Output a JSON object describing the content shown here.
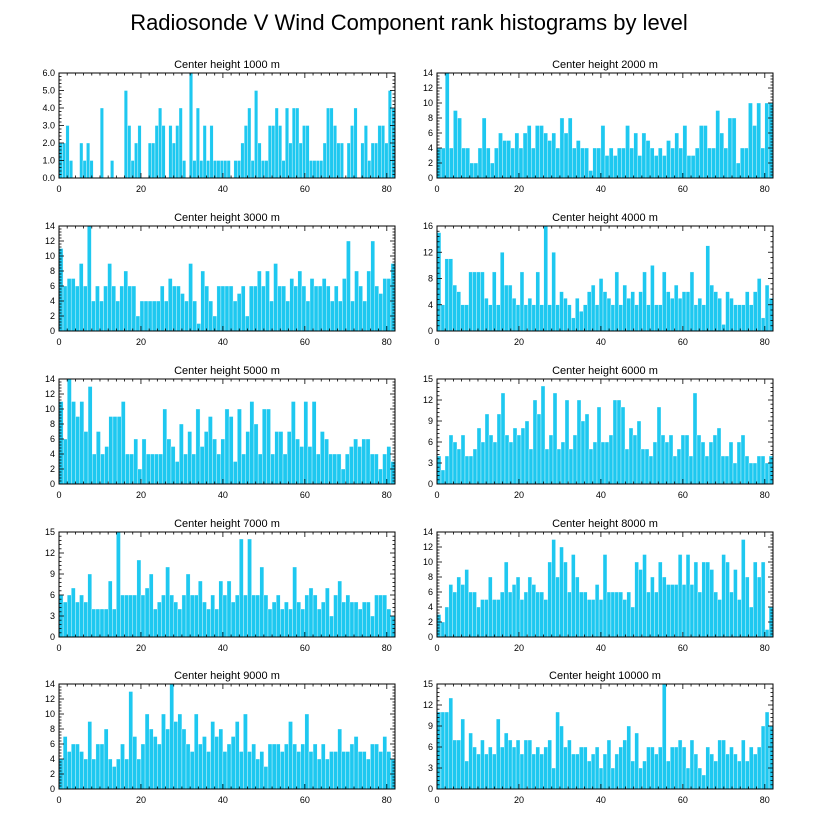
{
  "figure_title": "Radiosonde V Wind Component rank histograms by level",
  "bar_color": "#1EC8F0",
  "chart_data": [
    {
      "type": "bar",
      "title": "Center height 1000 m",
      "xlim": [
        0,
        82
      ],
      "ylim": [
        0,
        6
      ],
      "xticks": [
        "0",
        "20",
        "40",
        "60",
        "80"
      ],
      "yticks": [
        "0.0",
        "1.0",
        "2.0",
        "3.0",
        "4.0",
        "5.0",
        "6.0"
      ],
      "values": [
        2,
        2,
        3,
        1,
        0,
        0,
        2,
        1,
        2,
        1,
        0,
        0,
        4,
        0,
        0,
        1,
        0,
        0,
        0,
        5,
        3,
        1,
        2,
        3,
        0,
        0,
        2,
        2,
        3,
        4,
        3,
        0,
        3,
        2,
        3,
        4,
        1,
        0,
        6,
        1,
        4,
        1,
        3,
        1,
        3,
        1,
        1,
        1,
        1,
        1,
        0,
        1,
        1,
        2,
        3,
        4,
        1,
        5,
        2,
        1,
        1,
        3,
        3,
        4,
        3,
        1,
        4,
        2,
        4,
        4,
        2,
        3,
        3,
        1,
        1,
        1,
        1,
        2,
        4,
        4,
        3,
        2,
        2,
        0,
        2,
        3,
        4,
        0,
        2,
        3,
        1,
        2,
        2,
        3,
        3,
        2,
        5,
        4
      ]
    },
    {
      "type": "bar",
      "title": "Center height 2000 m",
      "xlim": [
        0,
        82
      ],
      "ylim": [
        0,
        14
      ],
      "xticks": [
        "0",
        "20",
        "40",
        "60",
        "80"
      ],
      "yticks": [
        "0",
        "2",
        "4",
        "6",
        "8",
        "10",
        "12",
        "14"
      ],
      "values": [
        4,
        4,
        14,
        4,
        9,
        8,
        4,
        4,
        2,
        2,
        4,
        8,
        4,
        2,
        4,
        6,
        5,
        5,
        4,
        6,
        4,
        6,
        7,
        4,
        7,
        7,
        6,
        5,
        6,
        4,
        8,
        6,
        8,
        4,
        5,
        4,
        4,
        1,
        4,
        4,
        7,
        3,
        4,
        3,
        4,
        4,
        7,
        4,
        6,
        3,
        6,
        5,
        4,
        3,
        4,
        3,
        5,
        4,
        6,
        4,
        7,
        3,
        3,
        4,
        7,
        7,
        4,
        4,
        9,
        6,
        4,
        8,
        8,
        2,
        4,
        4,
        10,
        7,
        10,
        4,
        10,
        10
      ]
    },
    {
      "type": "bar",
      "title": "Center height 3000 m",
      "xlim": [
        0,
        82
      ],
      "ylim": [
        0,
        14
      ],
      "xticks": [
        "0",
        "20",
        "40",
        "60",
        "80"
      ],
      "yticks": [
        "0",
        "2",
        "4",
        "6",
        "8",
        "10",
        "12",
        "14"
      ],
      "values": [
        11,
        6,
        7,
        7,
        6,
        9,
        6,
        14,
        4,
        6,
        4,
        6,
        9,
        6,
        4,
        6,
        8,
        6,
        6,
        2,
        4,
        4,
        4,
        4,
        4,
        6,
        4,
        7,
        6,
        6,
        5,
        4,
        9,
        4,
        1,
        8,
        6,
        4,
        2,
        6,
        6,
        6,
        6,
        4,
        5,
        6,
        2,
        6,
        6,
        8,
        6,
        8,
        4,
        9,
        6,
        6,
        4,
        7,
        6,
        8,
        6,
        4,
        7,
        6,
        6,
        7,
        6,
        4,
        6,
        4,
        7,
        12,
        4,
        8,
        6,
        4,
        8,
        12,
        6,
        5,
        7,
        7,
        9
      ]
    },
    {
      "type": "bar",
      "title": "Center height 4000 m",
      "xlim": [
        0,
        82
      ],
      "ylim": [
        0,
        16
      ],
      "xticks": [
        "0",
        "20",
        "40",
        "60",
        "80"
      ],
      "yticks": [
        "0",
        "4",
        "8",
        "12",
        "16"
      ],
      "values": [
        15,
        4,
        11,
        11,
        7,
        6,
        4,
        4,
        9,
        9,
        9,
        9,
        5,
        4,
        9,
        4,
        12,
        7,
        7,
        5,
        4,
        9,
        4,
        5,
        4,
        9,
        4,
        16,
        4,
        12,
        4,
        6,
        5,
        4,
        2,
        5,
        3,
        4,
        6,
        7,
        4,
        8,
        6,
        5,
        4,
        9,
        4,
        7,
        5,
        6,
        4,
        6,
        9,
        4,
        10,
        4,
        4,
        9,
        6,
        5,
        7,
        5,
        6,
        6,
        9,
        4,
        5,
        4,
        13,
        7,
        6,
        5,
        1,
        6,
        5,
        4,
        4,
        4,
        6,
        4,
        6,
        8,
        2,
        7,
        5
      ]
    },
    {
      "type": "bar",
      "title": "Center height 5000 m",
      "xlim": [
        0,
        82
      ],
      "ylim": [
        0,
        14
      ],
      "xticks": [
        "0",
        "20",
        "40",
        "60",
        "80"
      ],
      "yticks": [
        "0",
        "2",
        "4",
        "6",
        "8",
        "10",
        "12",
        "14"
      ],
      "values": [
        11,
        6,
        14,
        11,
        9,
        11,
        7,
        13,
        4,
        7,
        4,
        5,
        9,
        9,
        9,
        11,
        4,
        4,
        6,
        2,
        6,
        4,
        4,
        4,
        4,
        10,
        6,
        5,
        3,
        8,
        4,
        7,
        4,
        10,
        5,
        7,
        9,
        6,
        4,
        6,
        10,
        9,
        3,
        10,
        4,
        7,
        11,
        8,
        4,
        10,
        10,
        4,
        7,
        7,
        4,
        7,
        11,
        6,
        5,
        11,
        5,
        11,
        4,
        7,
        6,
        4,
        4,
        4,
        2,
        4,
        5,
        6,
        5,
        6,
        6,
        4,
        4,
        2,
        4,
        5,
        3
      ]
    },
    {
      "type": "bar",
      "title": "Center height 6000 m",
      "xlim": [
        0,
        82
      ],
      "ylim": [
        0,
        15
      ],
      "xticks": [
        "0",
        "20",
        "40",
        "60",
        "80"
      ],
      "yticks": [
        "0",
        "3",
        "6",
        "9",
        "12",
        "15"
      ],
      "values": [
        4,
        2,
        4,
        7,
        6,
        5,
        7,
        4,
        4,
        5,
        8,
        6,
        10,
        7,
        6,
        10,
        13,
        7,
        6,
        8,
        7,
        8,
        9,
        5,
        12,
        10,
        14,
        5,
        7,
        13,
        5,
        6,
        12,
        5,
        7,
        12,
        9,
        10,
        5,
        6,
        11,
        6,
        6,
        7,
        12,
        12,
        11,
        5,
        8,
        7,
        9,
        5,
        5,
        4,
        6,
        11,
        7,
        6,
        7,
        4,
        5,
        7,
        7,
        4,
        13,
        7,
        6,
        4,
        6,
        7,
        8,
        4,
        4,
        6,
        3,
        6,
        7,
        4,
        3,
        3,
        4,
        4,
        3,
        4
      ]
    },
    {
      "type": "bar",
      "title": "Center height 7000 m",
      "xlim": [
        0,
        82
      ],
      "ylim": [
        0,
        15
      ],
      "xticks": [
        "0",
        "20",
        "40",
        "60",
        "80"
      ],
      "yticks": [
        "0",
        "3",
        "6",
        "9",
        "12",
        "15"
      ],
      "values": [
        6,
        5,
        6,
        7,
        5,
        6,
        5,
        9,
        4,
        4,
        4,
        4,
        8,
        4,
        15,
        6,
        6,
        6,
        6,
        11,
        6,
        7,
        9,
        4,
        5,
        6,
        10,
        6,
        5,
        4,
        6,
        9,
        6,
        6,
        8,
        5,
        4,
        6,
        4,
        8,
        6,
        8,
        5,
        6,
        14,
        6,
        14,
        6,
        6,
        10,
        6,
        4,
        5,
        6,
        4,
        5,
        4,
        10,
        5,
        4,
        6,
        7,
        6,
        4,
        5,
        7,
        3,
        6,
        8,
        5,
        6,
        5,
        5,
        4,
        5,
        5,
        3,
        6,
        6,
        6,
        4,
        3
      ]
    },
    {
      "type": "bar",
      "title": "Center height 8000 m",
      "xlim": [
        0,
        82
      ],
      "ylim": [
        0,
        14
      ],
      "xticks": [
        "0",
        "20",
        "40",
        "60",
        "80"
      ],
      "yticks": [
        "0",
        "2",
        "4",
        "6",
        "8",
        "10",
        "12",
        "14"
      ],
      "values": [
        3,
        2,
        4,
        7,
        6,
        8,
        7,
        9,
        6,
        6,
        4,
        5,
        5,
        8,
        5,
        5,
        6,
        10,
        6,
        7,
        8,
        5,
        6,
        8,
        7,
        6,
        6,
        5,
        10,
        13,
        8,
        12,
        10,
        6,
        11,
        8,
        6,
        6,
        5,
        5,
        7,
        5,
        11,
        6,
        6,
        6,
        6,
        5,
        6,
        4,
        10,
        9,
        11,
        6,
        8,
        6,
        10,
        8,
        7,
        7,
        7,
        11,
        7,
        11,
        7,
        10,
        6,
        10,
        10,
        9,
        6,
        5,
        11,
        10,
        6,
        9,
        5,
        13,
        8,
        4,
        10,
        8,
        10,
        1,
        4
      ]
    },
    {
      "type": "bar",
      "title": "Center height 9000 m",
      "xlim": [
        0,
        82
      ],
      "ylim": [
        0,
        14
      ],
      "xticks": [
        "0",
        "20",
        "40",
        "60",
        "80"
      ],
      "yticks": [
        "0",
        "2",
        "4",
        "6",
        "8",
        "10",
        "12",
        "14"
      ],
      "values": [
        4,
        7,
        5,
        6,
        6,
        5,
        4,
        9,
        4,
        6,
        6,
        8,
        4,
        3,
        4,
        6,
        4,
        13,
        7,
        4,
        6,
        10,
        8,
        7,
        6,
        10,
        8,
        14,
        9,
        10,
        8,
        6,
        5,
        10,
        6,
        7,
        5,
        9,
        7,
        8,
        5,
        6,
        7,
        9,
        5,
        10,
        5,
        6,
        4,
        5,
        3,
        6,
        6,
        6,
        5,
        6,
        9,
        6,
        5,
        6,
        10,
        5,
        6,
        4,
        6,
        4,
        5,
        5,
        8,
        5,
        5,
        6,
        7,
        5,
        5,
        4,
        6,
        6,
        5,
        7,
        5,
        4
      ]
    },
    {
      "type": "bar",
      "title": "Center height 10000 m",
      "xlim": [
        0,
        82
      ],
      "ylim": [
        0,
        15
      ],
      "xticks": [
        "0",
        "20",
        "40",
        "60",
        "80"
      ],
      "yticks": [
        "0",
        "3",
        "6",
        "9",
        "12",
        "15"
      ],
      "values": [
        11,
        11,
        11,
        13,
        7,
        7,
        10,
        4,
        8,
        6,
        5,
        7,
        5,
        6,
        5,
        10,
        6,
        8,
        7,
        6,
        7,
        5,
        7,
        7,
        5,
        6,
        5,
        6,
        7,
        3,
        11,
        9,
        6,
        7,
        5,
        5,
        6,
        6,
        4,
        5,
        6,
        3,
        5,
        7,
        3,
        5,
        6,
        7,
        9,
        4,
        8,
        3,
        4,
        6,
        6,
        5,
        6,
        15,
        4,
        6,
        6,
        7,
        6,
        3,
        7,
        5,
        3,
        2,
        6,
        5,
        4,
        7,
        7,
        5,
        6,
        5,
        4,
        7,
        4,
        6,
        5,
        6,
        9,
        11,
        9
      ]
    }
  ]
}
